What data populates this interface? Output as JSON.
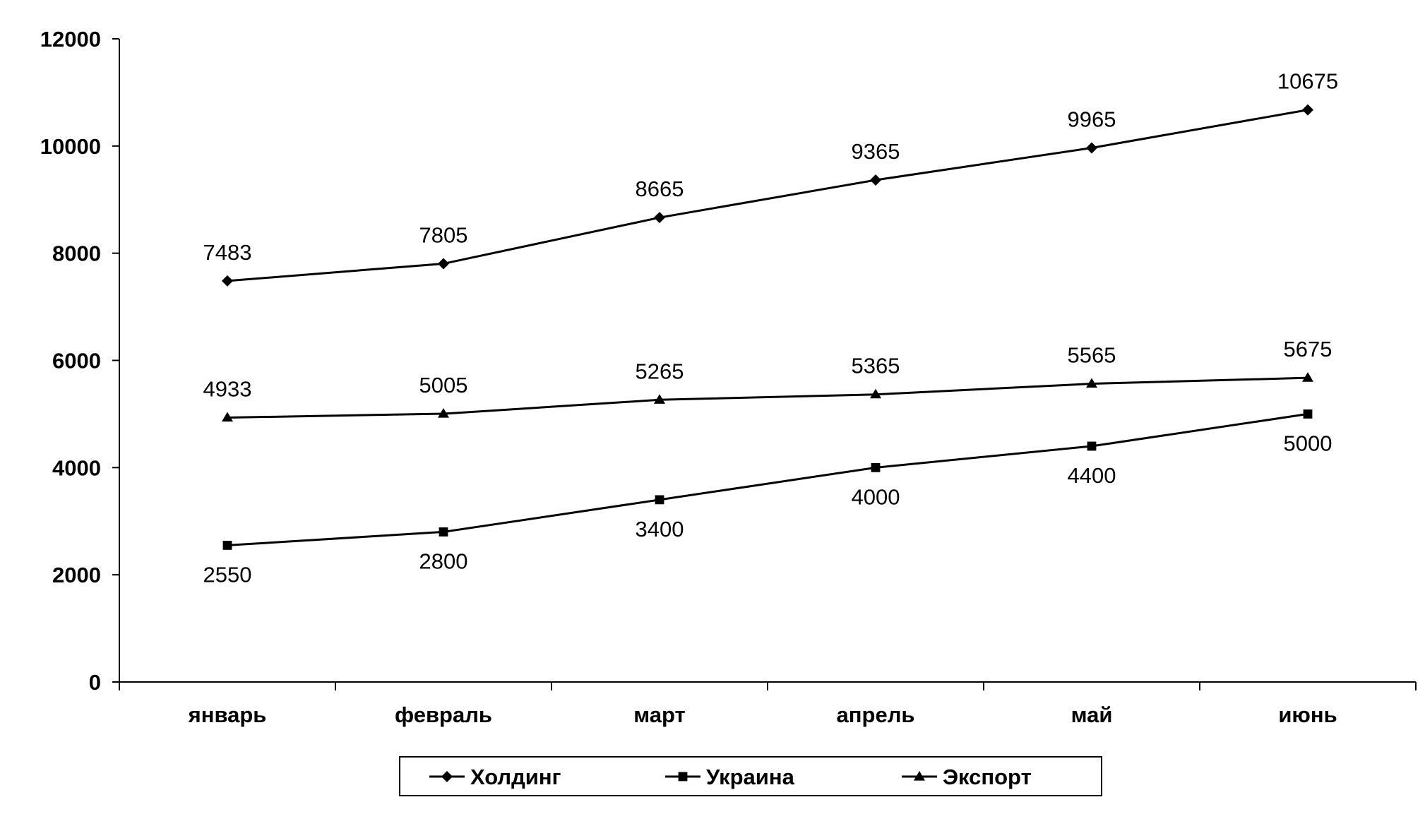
{
  "chart_data": {
    "type": "line",
    "title": "",
    "xlabel": "",
    "ylabel": "",
    "categories": [
      "январь",
      "февраль",
      "март",
      "апрель",
      "май",
      "июнь"
    ],
    "yticks": [
      "0",
      "2000",
      "4000",
      "6000",
      "8000",
      "10000",
      "12000"
    ],
    "ylim": [
      0,
      12000
    ],
    "grid": false,
    "legend": "bottom",
    "series": [
      {
        "name": "Холдинг",
        "marker": "diamond",
        "color": "#000000",
        "values": [
          7483,
          7805,
          8665,
          9365,
          9965,
          10675
        ],
        "labels": [
          "7483",
          "7805",
          "8665",
          "9365",
          "9965",
          "10675"
        ],
        "label_position": "above"
      },
      {
        "name": "Украина",
        "marker": "square",
        "color": "#000000",
        "values": [
          2550,
          2800,
          3400,
          4000,
          4400,
          5000
        ],
        "labels": [
          "2550",
          "2800",
          "3400",
          "4000",
          "4400",
          "5000"
        ],
        "label_position": "below"
      },
      {
        "name": "Экспорт",
        "marker": "triangle",
        "color": "#000000",
        "values": [
          4933,
          5005,
          5265,
          5365,
          5565,
          5675
        ],
        "labels": [
          "4933",
          "5005",
          "5265",
          "5365",
          "5565",
          "5675"
        ],
        "label_position": "above"
      }
    ]
  }
}
